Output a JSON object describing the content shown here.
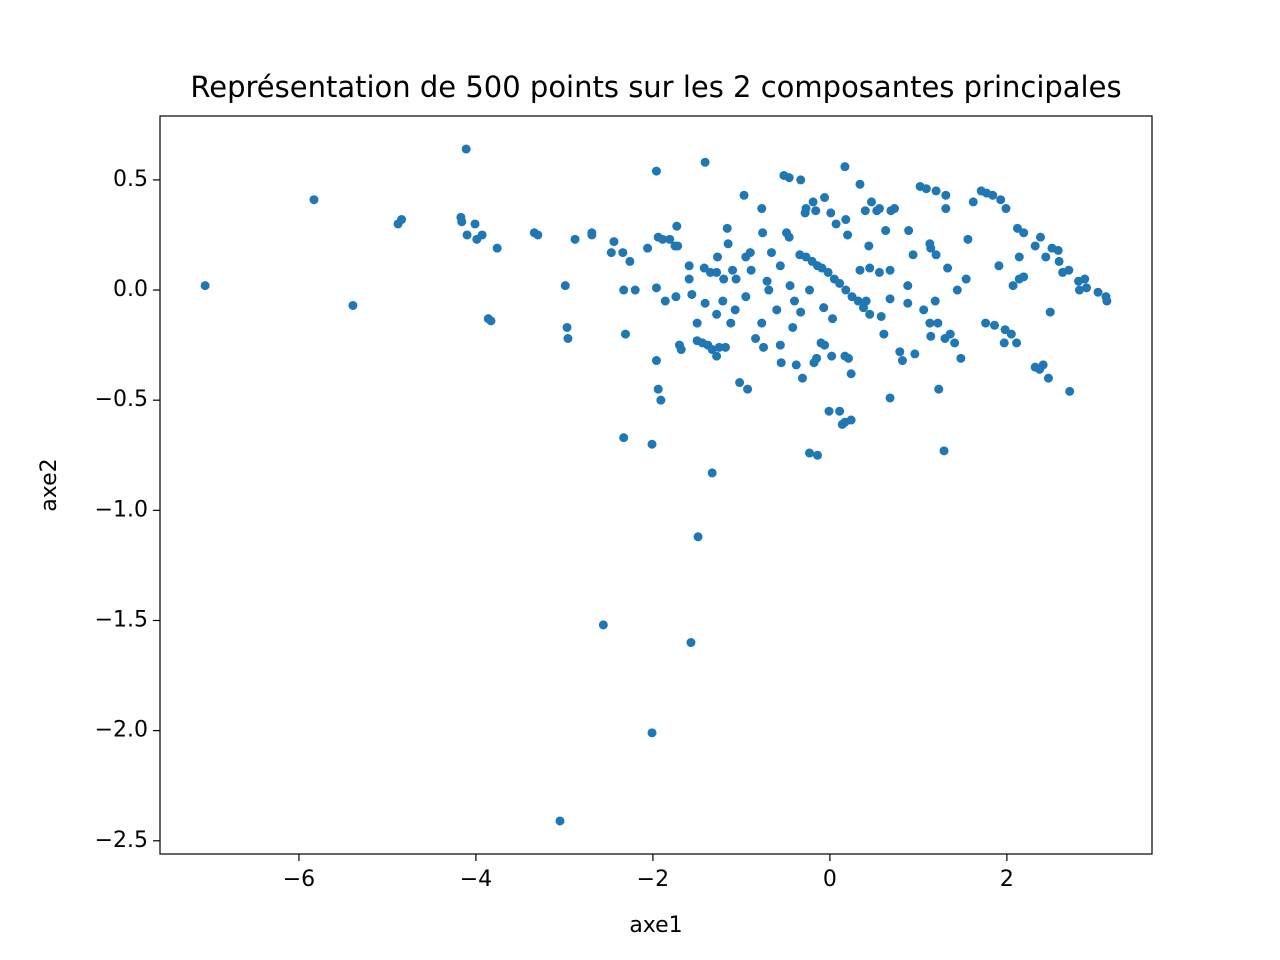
{
  "chart_data": {
    "type": "scatter",
    "title": "Représentation de 500 points sur les 2 composantes principales",
    "x_label": "axe1",
    "y_label": "axe2",
    "color": "#1f77b4",
    "xlim": [
      -7.57,
      3.64
    ],
    "ylim": [
      -2.56,
      0.79
    ],
    "xticks": [
      {
        "value": -6,
        "label": "−6"
      },
      {
        "value": -4,
        "label": "−4"
      },
      {
        "value": -2,
        "label": "−2"
      },
      0,
      2
    ],
    "yticks": [
      0.5,
      {
        "value": 0,
        "label": "0.0"
      },
      {
        "value": -0.5,
        "label": "−0.5"
      },
      {
        "value": -1,
        "label": "−1.0"
      },
      {
        "value": -1.5,
        "label": "−1.5"
      },
      {
        "value": -2,
        "label": "−2.0"
      },
      {
        "value": -2.5,
        "label": "−2.5"
      }
    ],
    "x": [
      -7.06,
      -5.83,
      -5.39,
      -4.88,
      -4.84,
      -4.11,
      -4.17,
      -4.16,
      -4.1,
      -4.01,
      -3.99,
      -3.93,
      -3.86,
      -3.83,
      -3.76,
      -3.34,
      -3.3,
      -2.99,
      -2.97,
      -2.96,
      -2.88,
      -3.05,
      -2.69,
      -2.69,
      -2.56,
      -2.47,
      -2.44,
      -2.34,
      -2.33,
      -2.31,
      -2.33,
      -2.26,
      -2.2,
      -2.01,
      -2.01,
      -2.06,
      -1.96,
      -1.96,
      -1.96,
      -1.94,
      -1.91,
      -1.94,
      -1.89,
      -1.86,
      -1.81,
      -1.75,
      -1.72,
      -1.74,
      -1.73,
      -1.7,
      -1.68,
      -1.59,
      -1.59,
      -1.57,
      -1.56,
      -1.5,
      -1.5,
      -1.44,
      -1.38,
      -1.49,
      -1.41,
      -1.41,
      -1.42,
      -1.35,
      -1.28,
      -1.33,
      -1.33,
      -1.28,
      -1.25,
      -1.28,
      -1.27,
      -1.21,
      -1.2,
      -1.18,
      -1.16,
      -1.15,
      -1.12,
      -1.07,
      -1.1,
      -1.06,
      -1.02,
      -0.97,
      -0.95,
      -0.93,
      -0.89,
      -0.95,
      -0.9,
      -0.84,
      -0.77,
      -0.75,
      -0.77,
      -0.76,
      -0.71,
      -0.69,
      -0.66,
      -0.6,
      -0.55,
      -0.56,
      -0.52,
      -0.49,
      -0.46,
      -0.46,
      -0.42,
      -0.38,
      -0.33,
      -0.33,
      -0.31,
      -0.28,
      -0.27,
      -0.23,
      -0.19,
      -0.16,
      -0.18,
      -0.15,
      -0.14,
      -0.1,
      -0.07,
      -0.06,
      -0.06,
      -0.01,
      0.01,
      0.02,
      0.03,
      0.07,
      0.11,
      0.14,
      0.17,
      0.17,
      0.17,
      0.21,
      0.18,
      0.2,
      0.24,
      0.24,
      0.34,
      0.4,
      0.41,
      0.44,
      0.47,
      0.53,
      0.56,
      0.58,
      0.61,
      0.63,
      0.68,
      0.68,
      0.73,
      0.69,
      0.79,
      0.82,
      0.88,
      0.88,
      0.89,
      0.94,
      0.96,
      1.02,
      1.09,
      1.2,
      1.06,
      1.13,
      1.22,
      1.13,
      1.14,
      1.2,
      1.14,
      1.19,
      1.23,
      1.29,
      1.31,
      1.31,
      1.3,
      1.36,
      1.41,
      1.48,
      1.33,
      1.44,
      1.54,
      1.56,
      1.62,
      1.71,
      1.77,
      1.84,
      1.93,
      1.91,
      1.76,
      1.86,
      1.98,
      2.05,
      2.11,
      1.99,
      2.07,
      2.14,
      2.19,
      2.12,
      2.19,
      2.14,
      1.97,
      2.32,
      2.38,
      2.32,
      2.37,
      2.41,
      2.47,
      2.44,
      2.51,
      2.59,
      2.58,
      2.49,
      2.63,
      2.7,
      2.71,
      2.81,
      2.88,
      2.82,
      2.9,
      3.03,
      3.12,
      3.13,
      -0.34,
      -0.27,
      -0.2,
      -0.14,
      -0.09,
      -0.02,
      0.05,
      0.11,
      0.18,
      0.25,
      0.32,
      0.38,
      0.45,
      0.34,
      0.45,
      0.56,
      0.68,
      -0.56,
      -0.45,
      -0.23,
      -0.4
    ],
    "y": [
      0.02,
      0.41,
      -0.07,
      0.3,
      0.32,
      0.64,
      0.33,
      0.31,
      0.25,
      0.3,
      0.23,
      0.25,
      -0.13,
      -0.14,
      0.19,
      0.26,
      0.25,
      0.02,
      -0.17,
      -0.22,
      0.23,
      -2.41,
      0.26,
      0.25,
      -1.52,
      0.17,
      0.22,
      0.17,
      0.0,
      -0.2,
      -0.67,
      0.13,
      0.0,
      -2.01,
      -0.7,
      0.19,
      0.54,
      0.01,
      -0.32,
      -0.45,
      -0.5,
      0.24,
      0.23,
      -0.05,
      0.23,
      0.2,
      0.2,
      -0.03,
      0.29,
      -0.25,
      -0.27,
      0.11,
      0.05,
      -1.6,
      -0.02,
      -0.15,
      -0.23,
      -0.24,
      -0.25,
      -1.12,
      0.58,
      -0.06,
      0.1,
      0.08,
      0.08,
      -0.83,
      -0.27,
      -0.3,
      -0.26,
      -0.11,
      0.15,
      -0.05,
      0.05,
      -0.26,
      0.28,
      0.21,
      -0.15,
      -0.09,
      0.09,
      0.05,
      -0.42,
      0.43,
      -0.03,
      -0.45,
      0.09,
      0.15,
      0.17,
      -0.22,
      -0.15,
      -0.26,
      0.37,
      0.26,
      0.04,
      0.0,
      0.17,
      -0.09,
      -0.33,
      -0.25,
      0.52,
      0.26,
      0.24,
      0.51,
      -0.17,
      -0.34,
      0.5,
      -0.1,
      -0.4,
      0.35,
      0.37,
      -0.74,
      0.4,
      0.36,
      -0.33,
      -0.31,
      -0.75,
      -0.24,
      -0.08,
      0.42,
      -0.25,
      -0.55,
      0.35,
      -0.3,
      -0.13,
      0.3,
      -0.55,
      -0.61,
      -0.6,
      0.56,
      -0.3,
      -0.31,
      0.32,
      0.25,
      -0.59,
      -0.38,
      0.48,
      0.36,
      -0.05,
      0.2,
      0.4,
      0.36,
      0.37,
      -0.12,
      -0.2,
      0.27,
      -0.49,
      -0.04,
      0.37,
      0.36,
      -0.28,
      -0.32,
      0.02,
      -0.06,
      0.27,
      0.16,
      -0.29,
      0.47,
      0.46,
      0.45,
      -0.09,
      -0.15,
      -0.15,
      0.21,
      0.19,
      0.16,
      -0.21,
      -0.05,
      -0.45,
      -0.73,
      0.43,
      0.37,
      -0.22,
      -0.2,
      -0.24,
      -0.31,
      0.1,
      0.0,
      0.05,
      0.23,
      0.4,
      0.45,
      0.44,
      0.43,
      0.41,
      0.11,
      -0.15,
      -0.16,
      -0.18,
      -0.2,
      -0.24,
      0.37,
      0.02,
      0.05,
      0.06,
      0.28,
      0.26,
      0.15,
      -0.24,
      0.2,
      0.24,
      -0.35,
      -0.36,
      -0.34,
      -0.4,
      0.15,
      0.19,
      0.13,
      0.18,
      -0.1,
      0.08,
      0.09,
      -0.46,
      0.04,
      0.05,
      0.0,
      0.01,
      -0.01,
      -0.03,
      -0.05,
      0.16,
      0.15,
      0.13,
      0.11,
      0.1,
      0.08,
      0.05,
      0.03,
      0.0,
      -0.03,
      -0.05,
      -0.08,
      -0.11,
      0.09,
      0.1,
      0.08,
      0.09,
      0.11,
      0.02,
      0.0,
      -0.05
    ]
  }
}
